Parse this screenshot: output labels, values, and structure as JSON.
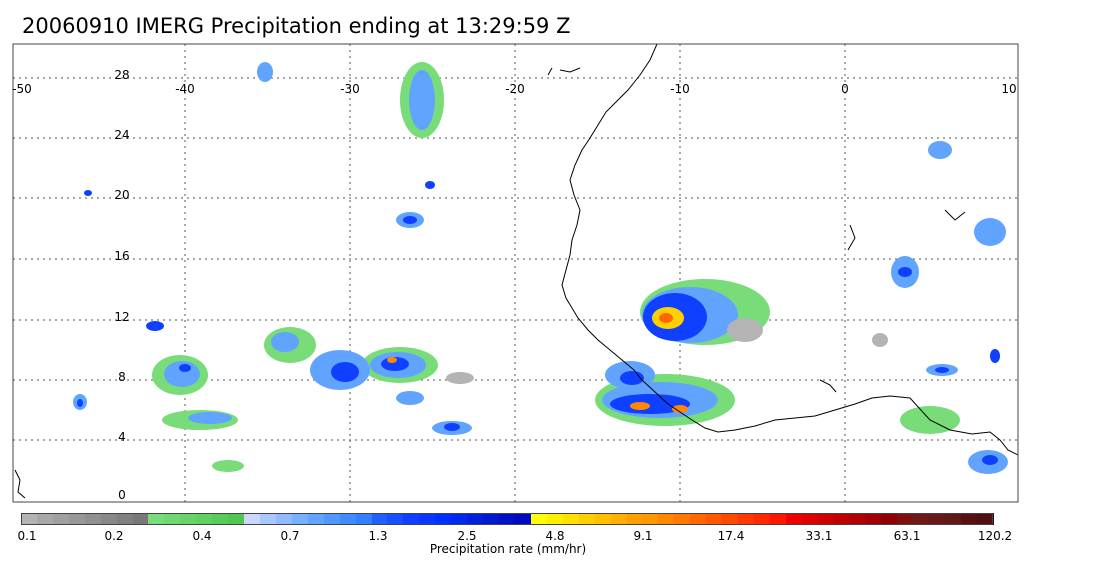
{
  "title": "20060910 IMERG Precipitation ending at 13:29:59 Z",
  "map": {
    "lon_labels": [
      "-50",
      "-40",
      "-30",
      "-20",
      "-10",
      "0",
      "10"
    ],
    "lat_labels": [
      "28",
      "24",
      "20",
      "16",
      "12",
      "8",
      "4",
      "0"
    ]
  },
  "colorbar": {
    "title": "Precipitation rate (mm/hr)",
    "tick_labels": [
      "0.1",
      "0.2",
      "0.4",
      "0.7",
      "1.3",
      "2.5",
      "4.8",
      "9.1",
      "17.4",
      "33.1",
      "63.1",
      "120.2"
    ],
    "colors": [
      "#b4b4b4",
      "#a8a8a8",
      "#a0a0a0",
      "#989898",
      "#909090",
      "#888888",
      "#808080",
      "#787878",
      "#78dc78",
      "#70d870",
      "#68d468",
      "#60d060",
      "#58cc58",
      "#50c850",
      "#c8d8ff",
      "#a8c8ff",
      "#90bcff",
      "#78b0ff",
      "#60a4ff",
      "#5098ff",
      "#408cff",
      "#3080ff",
      "#2060ff",
      "#1850ff",
      "#1040ff",
      "#0838ff",
      "#0030ff",
      "#0028f0",
      "#0020e0",
      "#0018d0",
      "#0010c8",
      "#0008c0",
      "#ffff00",
      "#fff000",
      "#ffe000",
      "#ffd000",
      "#ffc000",
      "#ffb000",
      "#ffa000",
      "#ff9800",
      "#ff8800",
      "#ff7800",
      "#ff6800",
      "#ff5800",
      "#ff4800",
      "#ff3800",
      "#ff2800",
      "#ff1800",
      "#f00000",
      "#e00000",
      "#d00000",
      "#c00000",
      "#b00000",
      "#a00000",
      "#900000",
      "#801010",
      "#701818",
      "#681818",
      "#601818",
      "#581010",
      "#501010"
    ]
  }
}
